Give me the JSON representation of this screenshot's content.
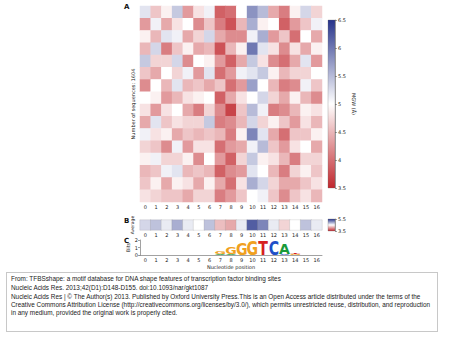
{
  "chart_data": [
    {
      "type": "heatmap",
      "panel": "A",
      "x": [
        0,
        1,
        2,
        3,
        4,
        5,
        6,
        7,
        8,
        9,
        10,
        11,
        12,
        13,
        14,
        15,
        16
      ],
      "y_label": "Number of sequences: 1604",
      "tick_labels": "x",
      "cells": [
        [
          5.2,
          4.6,
          4.9,
          5.4,
          4.3,
          4.8,
          5.1,
          3.9,
          4.0,
          5.0,
          5.8,
          5.5,
          4.4,
          4.1,
          4.9,
          5.3,
          4.7
        ],
        [
          4.3,
          5.1,
          4.4,
          4.8,
          5.0,
          4.2,
          4.6,
          4.1,
          3.8,
          4.5,
          5.6,
          4.9,
          5.0,
          3.9,
          4.3,
          4.6,
          5.1
        ],
        [
          4.9,
          4.5,
          5.2,
          5.1,
          4.4,
          4.7,
          5.3,
          4.4,
          4.2,
          4.2,
          5.1,
          5.6,
          4.3,
          4.6,
          4.0,
          5.0,
          4.4
        ],
        [
          4.5,
          5.3,
          4.1,
          4.6,
          4.9,
          4.4,
          4.5,
          3.8,
          4.5,
          4.9,
          6.0,
          5.2,
          4.8,
          4.2,
          4.8,
          4.4,
          4.9
        ],
        [
          5.4,
          4.7,
          4.7,
          5.3,
          4.2,
          5.0,
          4.9,
          4.3,
          3.9,
          4.4,
          5.4,
          4.8,
          4.2,
          4.0,
          4.4,
          5.2,
          4.3
        ],
        [
          4.6,
          4.4,
          5.0,
          4.7,
          5.1,
          4.3,
          5.2,
          4.0,
          4.3,
          5.1,
          5.2,
          5.4,
          4.9,
          4.5,
          4.7,
          4.7,
          5.0
        ],
        [
          4.2,
          5.0,
          4.5,
          5.2,
          4.5,
          4.6,
          4.4,
          4.6,
          4.0,
          4.3,
          5.7,
          5.0,
          4.5,
          4.1,
          4.2,
          5.1,
          4.6
        ],
        [
          5.0,
          4.9,
          4.3,
          4.5,
          4.8,
          4.9,
          5.0,
          3.9,
          4.4,
          4.8,
          5.0,
          5.3,
          4.7,
          4.4,
          4.9,
          4.5,
          4.2
        ],
        [
          4.8,
          4.3,
          4.8,
          5.0,
          4.4,
          4.1,
          4.7,
          4.2,
          3.7,
          4.6,
          5.5,
          5.1,
          4.1,
          4.2,
          4.5,
          4.9,
          4.8
        ],
        [
          4.4,
          5.2,
          4.6,
          4.8,
          4.7,
          4.7,
          5.4,
          4.1,
          4.2,
          4.5,
          5.3,
          4.7,
          4.9,
          4.6,
          4.3,
          4.8,
          4.5
        ],
        [
          5.1,
          4.8,
          4.9,
          4.4,
          4.6,
          4.5,
          4.6,
          4.5,
          4.1,
          4.9,
          5.9,
          5.2,
          4.4,
          4.0,
          4.6,
          4.6,
          4.9
        ],
        [
          4.7,
          4.6,
          4.2,
          5.1,
          4.3,
          4.8,
          4.8,
          4.0,
          4.3,
          4.4,
          5.1,
          5.5,
          4.6,
          4.3,
          4.8,
          5.0,
          4.4
        ],
        [
          4.9,
          5.1,
          4.7,
          4.7,
          4.9,
          4.2,
          5.0,
          4.3,
          3.9,
          4.7,
          5.4,
          4.9,
          4.8,
          4.5,
          4.1,
          4.7,
          4.7
        ],
        [
          4.5,
          4.6,
          5.1,
          5.2,
          4.5,
          4.6,
          4.5,
          3.9,
          4.2,
          4.3,
          5.2,
          5.0,
          4.5,
          4.1,
          4.7,
          4.9,
          4.6
        ],
        [
          4.6,
          4.9,
          4.4,
          4.9,
          4.8,
          4.4,
          4.9,
          4.4,
          4.0,
          4.8,
          5.6,
          5.3,
          4.7,
          4.4,
          4.4,
          4.6,
          4.8
        ],
        [
          4.8,
          4.7,
          4.6,
          4.6,
          4.4,
          4.7,
          4.7,
          4.1,
          4.3,
          4.6,
          5.0,
          5.1,
          4.6,
          4.2,
          4.6,
          4.8,
          4.5
        ]
      ],
      "colorbar": {
        "label": "MGW (Å)",
        "range": [
          3.5,
          6.5
        ],
        "ticks": [
          3.5,
          4,
          4.5,
          5,
          5.5,
          6,
          6.5
        ]
      }
    },
    {
      "type": "heatmap",
      "panel": "B",
      "x": [
        0,
        1,
        2,
        3,
        4,
        5,
        6,
        7,
        8,
        9,
        10,
        11,
        12,
        13,
        14,
        15,
        16
      ],
      "y_label": "Average",
      "tick_labels": "x",
      "values": [
        4.7,
        4.8,
        4.6,
        4.9,
        4.6,
        4.5,
        4.8,
        4.2,
        4.1,
        4.6,
        5.3,
        5.1,
        4.6,
        4.3,
        4.5,
        4.8,
        4.6
      ],
      "colorbar": {
        "range": [
          3.5,
          5.5
        ],
        "ticks": [
          3.5,
          5.5
        ]
      }
    },
    {
      "type": "logo",
      "panel": "C",
      "x": [
        0,
        1,
        2,
        3,
        4,
        5,
        6,
        7,
        8,
        9,
        10,
        11,
        12,
        13,
        14,
        15,
        16
      ],
      "x_label": "Nucleotide position",
      "y_label": "Bits",
      "ylim": [
        0,
        2
      ],
      "yticks": [
        0,
        1,
        2
      ],
      "stacks": [
        {
          "position": 7,
          "letters": [
            {
              "letter": "A",
              "bits": 0.15
            },
            {
              "letter": "G",
              "bits": 0.3
            }
          ]
        },
        {
          "position": 8,
          "letters": [
            {
              "letter": "A",
              "bits": 0.1
            },
            {
              "letter": "G",
              "bits": 0.8
            }
          ]
        },
        {
          "position": 9,
          "letters": [
            {
              "letter": "G",
              "bits": 1.6
            }
          ]
        },
        {
          "position": 10,
          "letters": [
            {
              "letter": "G",
              "bits": 1.85
            }
          ]
        },
        {
          "position": 11,
          "letters": [
            {
              "letter": "T",
              "bits": 1.9
            }
          ]
        },
        {
          "position": 12,
          "letters": [
            {
              "letter": "C",
              "bits": 1.9
            }
          ]
        },
        {
          "position": 13,
          "letters": [
            {
              "letter": "C",
              "bits": 0.15
            },
            {
              "letter": "A",
              "bits": 1.3
            }
          ]
        },
        {
          "position": 14,
          "letters": [
            {
              "letter": "G",
              "bits": 0.1
            },
            {
              "letter": "T",
              "bits": 0.2
            }
          ]
        }
      ]
    }
  ],
  "caption": {
    "lines": [
      "From: TFBSshape: a motif database for DNA shape features of transcription factor binding sites",
      "Nucleic Acids Res. 2013;42(D1):D148-D155. doi:10.1093/nar/gkt1087",
      "Nucleic Acids Res | © The Author(s) 2013. Published by Oxford University Press.This is an Open Access article distributed under the terms of the Creative Commons Attribution License (http://creativecommons.org/licenses/by/3.0/), which permits unrestricted reuse, distribution, and reproduction in any medium, provided the original work is properly cited."
    ]
  }
}
